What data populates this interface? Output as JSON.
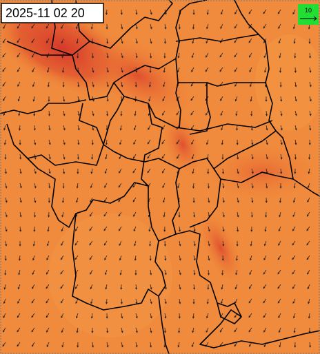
{
  "timestamp": "2025-11 02 20",
  "legend": {
    "label": "10"
  }
}
